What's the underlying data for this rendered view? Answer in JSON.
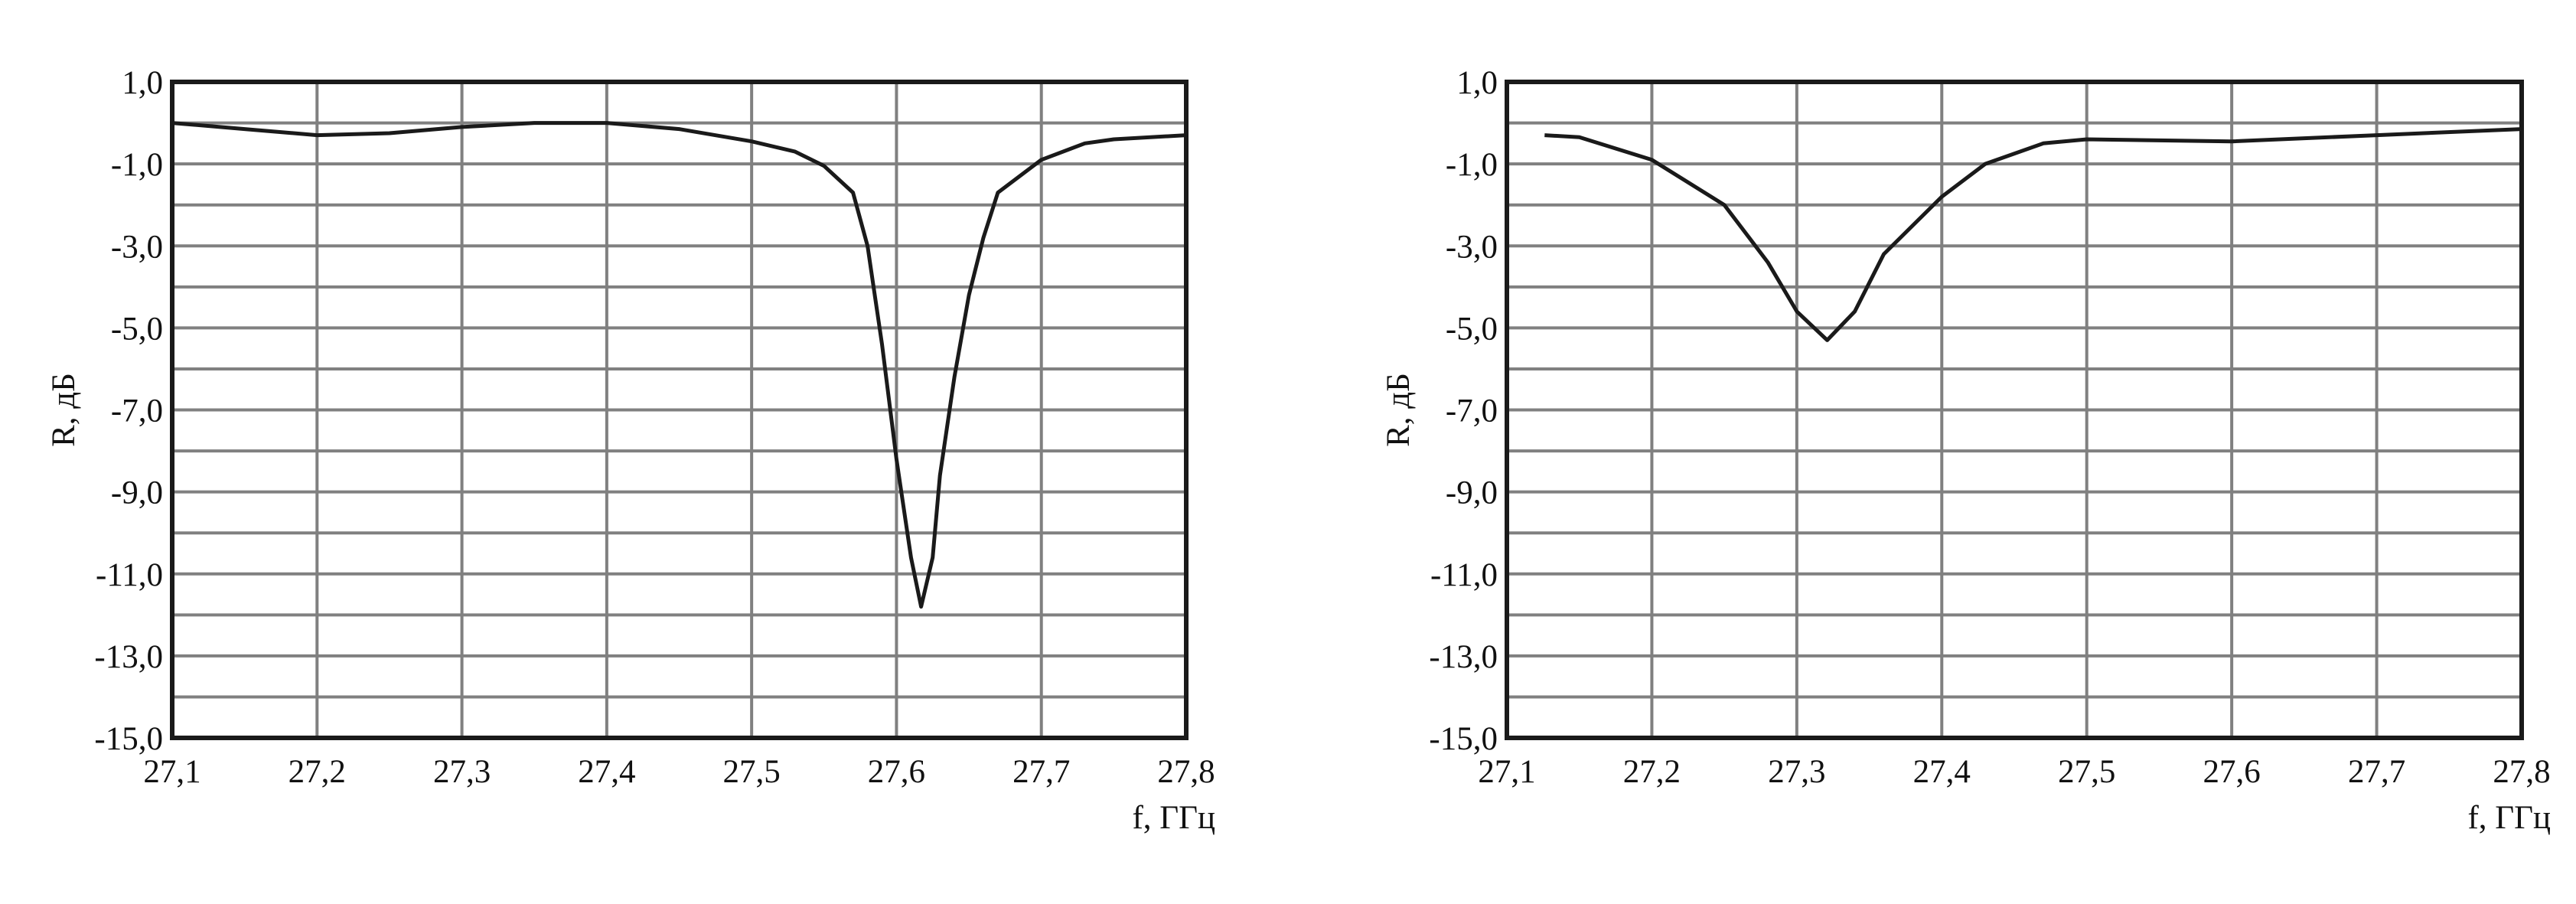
{
  "chart_data": [
    {
      "type": "line",
      "ylabel": "R, дБ",
      "xlabel": "f, ГГц",
      "xlim": [
        27.1,
        27.8
      ],
      "xticks": [
        {
          "value": 27.1,
          "label": "27,1"
        },
        {
          "value": 27.2,
          "label": "27,2"
        },
        {
          "value": 27.3,
          "label": "27,3"
        },
        {
          "value": 27.4,
          "label": "27,4"
        },
        {
          "value": 27.5,
          "label": "27,5"
        },
        {
          "value": 27.6,
          "label": "27,6"
        },
        {
          "value": 27.7,
          "label": "27,7"
        },
        {
          "value": 27.8,
          "label": "27,8"
        }
      ],
      "ylim": [
        -15,
        1
      ],
      "yticks": [
        {
          "value": 1,
          "label": "1,0"
        },
        {
          "value": -1,
          "label": "-1,0"
        },
        {
          "value": -3,
          "label": "-3,0"
        },
        {
          "value": -5,
          "label": "-5,0"
        },
        {
          "value": -7,
          "label": "-7,0"
        },
        {
          "value": -9,
          "label": "-9,0"
        },
        {
          "value": -11,
          "label": "-11,0"
        },
        {
          "value": -13,
          "label": "-13,0"
        },
        {
          "value": -15,
          "label": "-15,0"
        }
      ],
      "y_minor_ticks": [
        0,
        -2,
        -4,
        -6,
        -8,
        -10,
        -12,
        -14
      ],
      "grid": true,
      "series": [
        {
          "color": "#1a1a1a",
          "x": [
            27.1,
            27.15,
            27.2,
            27.25,
            27.3,
            27.35,
            27.4,
            27.45,
            27.5,
            27.53,
            27.55,
            27.57,
            27.58,
            27.59,
            27.6,
            27.61,
            27.617,
            27.625,
            27.63,
            27.64,
            27.65,
            27.66,
            27.67,
            27.7,
            27.73,
            27.75,
            27.8
          ],
          "values": [
            0,
            -0.15,
            -0.3,
            -0.25,
            -0.1,
            0,
            0,
            -0.15,
            -0.45,
            -0.7,
            -1.05,
            -1.7,
            -3.0,
            -5.4,
            -8.2,
            -10.6,
            -11.8,
            -10.6,
            -8.6,
            -6.2,
            -4.2,
            -2.8,
            -1.7,
            -0.9,
            -0.5,
            -0.4,
            -0.3
          ]
        }
      ]
    },
    {
      "type": "line",
      "ylabel": "R, дБ",
      "xlabel": "f, ГГц",
      "xlim": [
        27.1,
        27.8
      ],
      "xticks": [
        {
          "value": 27.1,
          "label": "27,1"
        },
        {
          "value": 27.2,
          "label": "27,2"
        },
        {
          "value": 27.3,
          "label": "27,3"
        },
        {
          "value": 27.4,
          "label": "27,4"
        },
        {
          "value": 27.5,
          "label": "27,5"
        },
        {
          "value": 27.6,
          "label": "27,6"
        },
        {
          "value": 27.7,
          "label": "27,7"
        },
        {
          "value": 27.8,
          "label": "27,8"
        }
      ],
      "ylim": [
        -15,
        1
      ],
      "yticks": [
        {
          "value": 1,
          "label": "1,0"
        },
        {
          "value": -1,
          "label": "-1,0"
        },
        {
          "value": -3,
          "label": "-3,0"
        },
        {
          "value": -5,
          "label": "-5,0"
        },
        {
          "value": -7,
          "label": "-7,0"
        },
        {
          "value": -9,
          "label": "-9,0"
        },
        {
          "value": -11,
          "label": "-11,0"
        },
        {
          "value": -13,
          "label": "-13,0"
        },
        {
          "value": -15,
          "label": "-15,0"
        }
      ],
      "y_minor_ticks": [
        0,
        -2,
        -4,
        -6,
        -8,
        -10,
        -12,
        -14
      ],
      "grid": true,
      "series": [
        {
          "color": "#1a1a1a",
          "x": [
            27.126,
            27.15,
            27.2,
            27.25,
            27.28,
            27.3,
            27.321,
            27.34,
            27.36,
            27.4,
            27.43,
            27.47,
            27.5,
            27.6,
            27.7,
            27.8
          ],
          "values": [
            -0.3,
            -0.35,
            -0.9,
            -2.0,
            -3.4,
            -4.6,
            -5.3,
            -4.6,
            -3.2,
            -1.8,
            -1.0,
            -0.5,
            -0.4,
            -0.45,
            -0.3,
            -0.15
          ]
        }
      ]
    }
  ]
}
